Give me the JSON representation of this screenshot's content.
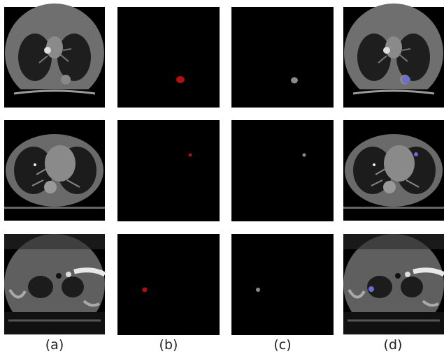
{
  "labels": [
    "(a)",
    "(b)",
    "(c)",
    "(d)"
  ]
}
